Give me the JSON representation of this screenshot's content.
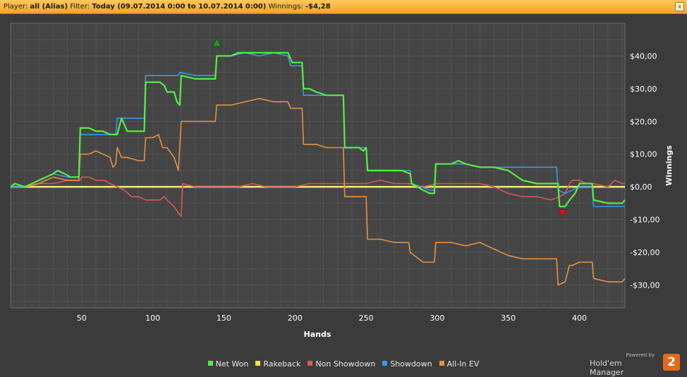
{
  "header": {
    "player_label": "Player:",
    "player_value": "all (Alias)",
    "filter_label": "Filter:",
    "filter_value": "Today (09.07.2014 0:00 to 10.07.2014 0:00)",
    "winnings_label": "Winnings:",
    "winnings_value": "-$4,28",
    "close_glyph": "x"
  },
  "branding": {
    "powered_by": "Powered by",
    "product": "Hold'em Manager",
    "badge": "2"
  },
  "chart_data": {
    "type": "line",
    "xlabel": "Hands",
    "ylabel": "Winnings",
    "xlim": [
      0,
      432
    ],
    "ylim": [
      -37,
      50
    ],
    "x_ticks": [
      50,
      100,
      150,
      200,
      250,
      300,
      350,
      400
    ],
    "y_ticks": [
      -30,
      -20,
      -10,
      0,
      10,
      20,
      30,
      40
    ],
    "y_tick_labels": [
      "-$30,00",
      "-$20,00",
      "-$10,00",
      "$0,00",
      "$10,00",
      "$20,00",
      "$30,00",
      "$40,00"
    ],
    "grid": true,
    "legend_position": "bottom",
    "markers": [
      {
        "name": "max-marker",
        "x": 145,
        "y": 44,
        "color": "#1a9a1a"
      },
      {
        "name": "min-marker",
        "x": 388,
        "y": -8,
        "color": "#e01010"
      }
    ],
    "series": [
      {
        "name": "Net Won",
        "color": "#55ee44",
        "points": [
          [
            0,
            0
          ],
          [
            3,
            1
          ],
          [
            10,
            0
          ],
          [
            15,
            1
          ],
          [
            20,
            2
          ],
          [
            25,
            3
          ],
          [
            30,
            4
          ],
          [
            33,
            5
          ],
          [
            38,
            4
          ],
          [
            42,
            3
          ],
          [
            48,
            3
          ],
          [
            49,
            18
          ],
          [
            55,
            18
          ],
          [
            60,
            17
          ],
          [
            65,
            17
          ],
          [
            70,
            16
          ],
          [
            75,
            16
          ],
          [
            78,
            21
          ],
          [
            82,
            17
          ],
          [
            90,
            17
          ],
          [
            94,
            17
          ],
          [
            95,
            32
          ],
          [
            100,
            32
          ],
          [
            105,
            32
          ],
          [
            108,
            31
          ],
          [
            110,
            29
          ],
          [
            115,
            29
          ],
          [
            117,
            26
          ],
          [
            119,
            25
          ],
          [
            120,
            34
          ],
          [
            130,
            33
          ],
          [
            135,
            33
          ],
          [
            140,
            33
          ],
          [
            144,
            33
          ],
          [
            145,
            40
          ],
          [
            150,
            40
          ],
          [
            155,
            40
          ],
          [
            160,
            41
          ],
          [
            165,
            41
          ],
          [
            175,
            41
          ],
          [
            180,
            41
          ],
          [
            185,
            41
          ],
          [
            190,
            41
          ],
          [
            195,
            41
          ],
          [
            198,
            38
          ],
          [
            205,
            38
          ],
          [
            206,
            30
          ],
          [
            210,
            30
          ],
          [
            215,
            29
          ],
          [
            222,
            28
          ],
          [
            230,
            28
          ],
          [
            234,
            28
          ],
          [
            235,
            12
          ],
          [
            245,
            12
          ],
          [
            248,
            11
          ],
          [
            250,
            12
          ],
          [
            251,
            5
          ],
          [
            260,
            5
          ],
          [
            270,
            5
          ],
          [
            275,
            5
          ],
          [
            281,
            4
          ],
          [
            282,
            1
          ],
          [
            290,
            -1
          ],
          [
            295,
            -2
          ],
          [
            298,
            -2
          ],
          [
            299,
            7
          ],
          [
            305,
            7
          ],
          [
            310,
            7
          ],
          [
            315,
            8
          ],
          [
            320,
            7
          ],
          [
            330,
            6
          ],
          [
            340,
            6
          ],
          [
            350,
            5
          ],
          [
            360,
            2
          ],
          [
            370,
            1
          ],
          [
            380,
            1
          ],
          [
            385,
            1
          ],
          [
            386,
            -6
          ],
          [
            390,
            -6
          ],
          [
            393,
            -4
          ],
          [
            395,
            -3
          ],
          [
            397,
            -2
          ],
          [
            400,
            1
          ],
          [
            405,
            1
          ],
          [
            409,
            1
          ],
          [
            410,
            -4
          ],
          [
            420,
            -5
          ],
          [
            430,
            -5
          ],
          [
            432,
            -4
          ]
        ]
      },
      {
        "name": "Rakeback",
        "color": "#f2e43a",
        "points": [
          [
            0,
            0
          ],
          [
            432,
            0
          ]
        ]
      },
      {
        "name": "Non Showdown",
        "color": "#e05555",
        "points": [
          [
            0,
            0
          ],
          [
            10,
            0
          ],
          [
            20,
            1
          ],
          [
            30,
            1
          ],
          [
            40,
            2
          ],
          [
            49,
            2
          ],
          [
            50,
            3
          ],
          [
            55,
            3
          ],
          [
            60,
            2
          ],
          [
            66,
            2
          ],
          [
            70,
            1
          ],
          [
            75,
            0
          ],
          [
            80,
            -1
          ],
          [
            85,
            -3
          ],
          [
            90,
            -3
          ],
          [
            95,
            -4
          ],
          [
            100,
            -4
          ],
          [
            105,
            -4
          ],
          [
            108,
            -3
          ],
          [
            110,
            -4
          ],
          [
            115,
            -6
          ],
          [
            118,
            -8
          ],
          [
            120,
            -9
          ],
          [
            121,
            1
          ],
          [
            130,
            0
          ],
          [
            140,
            0
          ],
          [
            150,
            0
          ],
          [
            160,
            0
          ],
          [
            170,
            1
          ],
          [
            180,
            0
          ],
          [
            190,
            0
          ],
          [
            200,
            0
          ],
          [
            210,
            1
          ],
          [
            220,
            1
          ],
          [
            230,
            1
          ],
          [
            240,
            1
          ],
          [
            250,
            1
          ],
          [
            260,
            2
          ],
          [
            270,
            1
          ],
          [
            280,
            1
          ],
          [
            290,
            0
          ],
          [
            300,
            1
          ],
          [
            310,
            1
          ],
          [
            320,
            1
          ],
          [
            330,
            1
          ],
          [
            340,
            0
          ],
          [
            350,
            -2
          ],
          [
            360,
            -3
          ],
          [
            370,
            -3
          ],
          [
            380,
            -4
          ],
          [
            386,
            -3
          ],
          [
            390,
            -2
          ],
          [
            393,
            1
          ],
          [
            395,
            2
          ],
          [
            400,
            2
          ],
          [
            405,
            1
          ],
          [
            410,
            1
          ],
          [
            420,
            0
          ],
          [
            425,
            2
          ],
          [
            430,
            1
          ],
          [
            432,
            1
          ]
        ]
      },
      {
        "name": "Showdown",
        "color": "#3a99e6",
        "points": [
          [
            0,
            0
          ],
          [
            10,
            0
          ],
          [
            20,
            2
          ],
          [
            30,
            4
          ],
          [
            40,
            3
          ],
          [
            48,
            3
          ],
          [
            49,
            16
          ],
          [
            60,
            16
          ],
          [
            70,
            16
          ],
          [
            74,
            16
          ],
          [
            75,
            21
          ],
          [
            85,
            21
          ],
          [
            94,
            21
          ],
          [
            95,
            34
          ],
          [
            105,
            34
          ],
          [
            118,
            34
          ],
          [
            119,
            35
          ],
          [
            130,
            34
          ],
          [
            144,
            34
          ],
          [
            145,
            40
          ],
          [
            155,
            40
          ],
          [
            165,
            41
          ],
          [
            175,
            40
          ],
          [
            185,
            41
          ],
          [
            195,
            40
          ],
          [
            197,
            37
          ],
          [
            205,
            37
          ],
          [
            206,
            28
          ],
          [
            220,
            28
          ],
          [
            234,
            28
          ],
          [
            235,
            12
          ],
          [
            250,
            12
          ],
          [
            251,
            5
          ],
          [
            270,
            5
          ],
          [
            281,
            5
          ],
          [
            282,
            1
          ],
          [
            295,
            -1
          ],
          [
            298,
            -1
          ],
          [
            299,
            7
          ],
          [
            320,
            7
          ],
          [
            330,
            6
          ],
          [
            340,
            6
          ],
          [
            350,
            6
          ],
          [
            360,
            6
          ],
          [
            370,
            6
          ],
          [
            380,
            6
          ],
          [
            384,
            6
          ],
          [
            385,
            -1
          ],
          [
            390,
            -2
          ],
          [
            395,
            -1
          ],
          [
            400,
            0
          ],
          [
            405,
            0
          ],
          [
            409,
            0
          ],
          [
            410,
            -6
          ],
          [
            420,
            -6
          ],
          [
            432,
            -6
          ]
        ]
      },
      {
        "name": "All-In EV",
        "color": "#e69140",
        "points": [
          [
            0,
            0
          ],
          [
            10,
            0
          ],
          [
            20,
            1
          ],
          [
            30,
            3
          ],
          [
            40,
            2
          ],
          [
            48,
            2
          ],
          [
            49,
            10
          ],
          [
            55,
            10
          ],
          [
            60,
            11
          ],
          [
            65,
            10
          ],
          [
            70,
            9
          ],
          [
            72,
            6
          ],
          [
            74,
            7
          ],
          [
            75,
            12
          ],
          [
            78,
            9
          ],
          [
            82,
            9
          ],
          [
            90,
            8
          ],
          [
            94,
            8
          ],
          [
            95,
            15
          ],
          [
            100,
            15
          ],
          [
            104,
            16
          ],
          [
            107,
            12
          ],
          [
            110,
            12
          ],
          [
            115,
            9
          ],
          [
            118,
            5
          ],
          [
            120,
            20
          ],
          [
            130,
            20
          ],
          [
            140,
            20
          ],
          [
            144,
            20
          ],
          [
            145,
            25
          ],
          [
            155,
            25
          ],
          [
            165,
            26
          ],
          [
            175,
            27
          ],
          [
            185,
            26
          ],
          [
            195,
            26
          ],
          [
            197,
            24
          ],
          [
            205,
            24
          ],
          [
            206,
            13
          ],
          [
            215,
            13
          ],
          [
            222,
            12
          ],
          [
            230,
            12
          ],
          [
            234,
            12
          ],
          [
            235,
            -3
          ],
          [
            245,
            -3
          ],
          [
            250,
            -3
          ],
          [
            251,
            -16
          ],
          [
            260,
            -16
          ],
          [
            270,
            -17
          ],
          [
            280,
            -17
          ],
          [
            281,
            -20
          ],
          [
            290,
            -23
          ],
          [
            295,
            -23
          ],
          [
            298,
            -23
          ],
          [
            299,
            -17
          ],
          [
            310,
            -17
          ],
          [
            320,
            -18
          ],
          [
            330,
            -17
          ],
          [
            340,
            -19
          ],
          [
            350,
            -21
          ],
          [
            360,
            -22
          ],
          [
            370,
            -22
          ],
          [
            380,
            -22
          ],
          [
            384,
            -22
          ],
          [
            385,
            -30
          ],
          [
            390,
            -29
          ],
          [
            393,
            -24
          ],
          [
            395,
            -24
          ],
          [
            400,
            -23
          ],
          [
            405,
            -23
          ],
          [
            409,
            -23
          ],
          [
            410,
            -28
          ],
          [
            420,
            -29
          ],
          [
            430,
            -29
          ],
          [
            432,
            -28
          ]
        ]
      }
    ]
  },
  "theme": {
    "background": "#3b3b3b",
    "plot_background": "#454545",
    "grid_color": "#5c5c5c",
    "zero_line": "#ffffff",
    "title_bar": "#f4a52a"
  }
}
